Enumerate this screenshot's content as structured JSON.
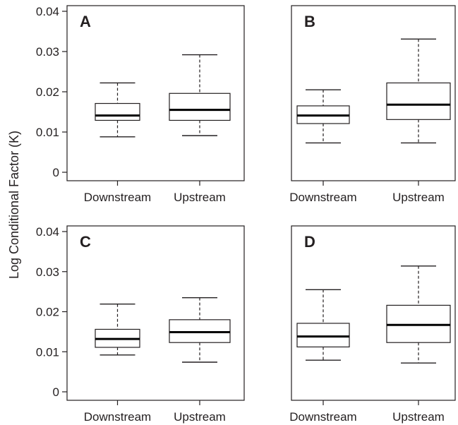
{
  "chart_data": {
    "type": "box",
    "ylabel": "Log Conditional Factor (K)",
    "yticks": [
      "0",
      "0.01",
      "0.02",
      "0.03",
      "0.04"
    ],
    "ylim": [
      0,
      0.04
    ],
    "categories": [
      "Downstream",
      "Upstream"
    ],
    "panels": [
      {
        "label": "A",
        "boxes": [
          {
            "category": "Downstream",
            "min": 0.0088,
            "q1": 0.0129,
            "median": 0.0141,
            "q3": 0.0171,
            "max": 0.0222
          },
          {
            "category": "Upstream",
            "min": 0.0091,
            "q1": 0.0129,
            "median": 0.0155,
            "q3": 0.0196,
            "max": 0.0292
          }
        ]
      },
      {
        "label": "B",
        "boxes": [
          {
            "category": "Downstream",
            "min": 0.0073,
            "q1": 0.0121,
            "median": 0.0141,
            "q3": 0.0165,
            "max": 0.0205
          },
          {
            "category": "Upstream",
            "min": 0.0073,
            "q1": 0.0131,
            "median": 0.0168,
            "q3": 0.0222,
            "max": 0.0331
          }
        ]
      },
      {
        "label": "C",
        "boxes": [
          {
            "category": "Downstream",
            "min": 0.0092,
            "q1": 0.0111,
            "median": 0.0132,
            "q3": 0.0156,
            "max": 0.0219
          },
          {
            "category": "Upstream",
            "min": 0.0074,
            "q1": 0.0123,
            "median": 0.0149,
            "q3": 0.018,
            "max": 0.0235
          }
        ]
      },
      {
        "label": "D",
        "boxes": [
          {
            "category": "Downstream",
            "min": 0.0079,
            "q1": 0.0112,
            "median": 0.0138,
            "q3": 0.0171,
            "max": 0.0255
          },
          {
            "category": "Upstream",
            "min": 0.0072,
            "q1": 0.0123,
            "median": 0.0167,
            "q3": 0.0216,
            "max": 0.0314
          }
        ]
      }
    ]
  }
}
